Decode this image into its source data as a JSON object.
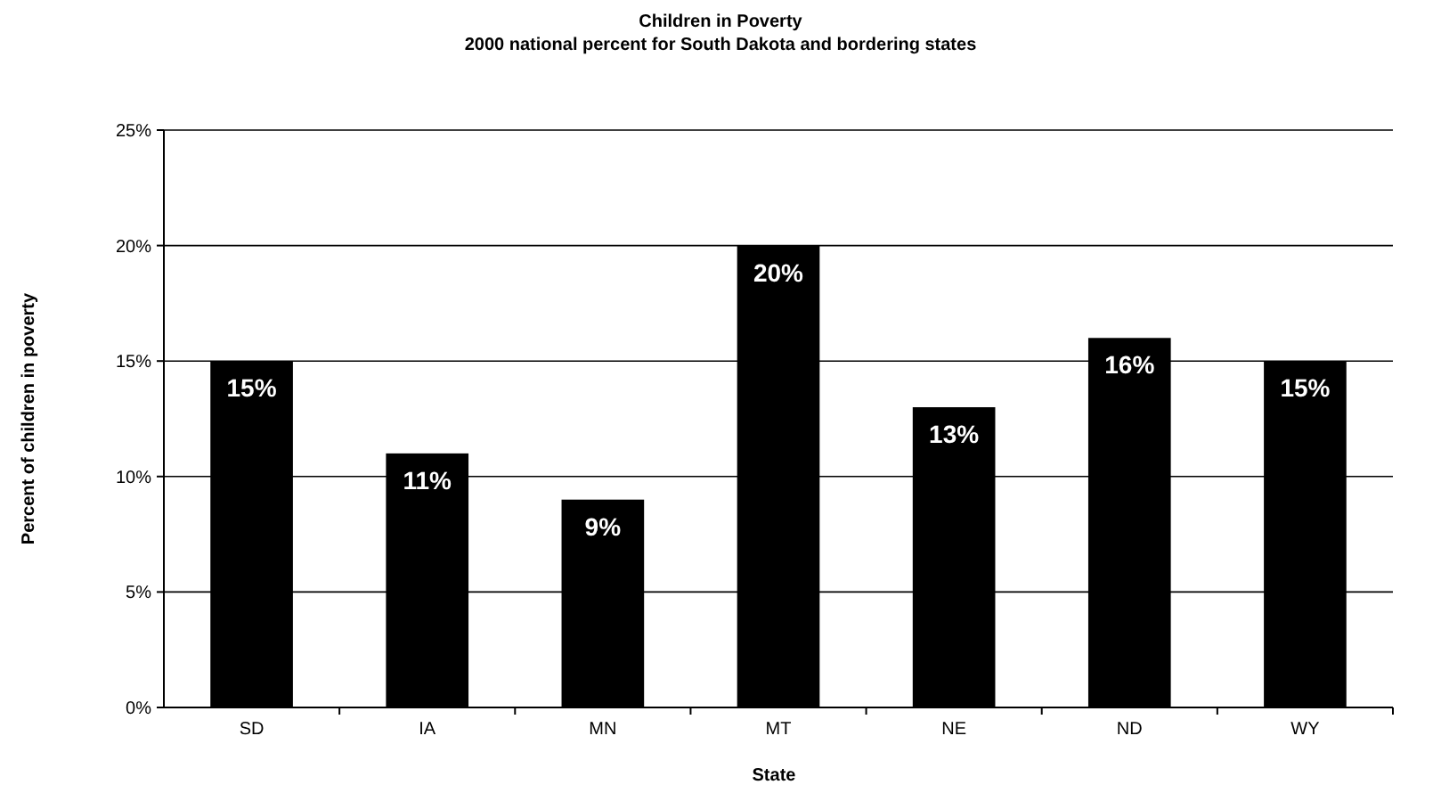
{
  "chart_data": {
    "type": "bar",
    "title": "Children in Poverty",
    "subtitle": "2000 national percent for South Dakota and bordering states",
    "xlabel": "State",
    "ylabel": "Percent of children in poverty",
    "categories": [
      "SD",
      "IA",
      "MN",
      "MT",
      "NE",
      "ND",
      "WY"
    ],
    "values": [
      15,
      11,
      9,
      20,
      13,
      16,
      15
    ],
    "value_labels": [
      "15%",
      "11%",
      "9%",
      "20%",
      "13%",
      "16%",
      "15%"
    ],
    "color": "#000000",
    "ylim": [
      0,
      25
    ],
    "yticks": [
      {
        "value": 0,
        "label": "0%"
      },
      {
        "value": 5,
        "label": "5%"
      },
      {
        "value": 10,
        "label": "10%"
      },
      {
        "value": 15,
        "label": "15%"
      },
      {
        "value": 20,
        "label": "20%"
      },
      {
        "value": 25,
        "label": "25%"
      }
    ],
    "grid": "y"
  }
}
